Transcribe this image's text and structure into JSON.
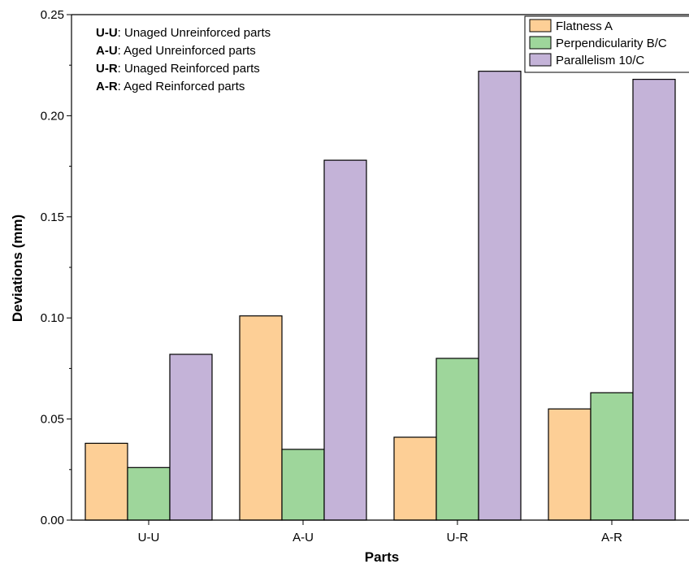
{
  "chart_data": {
    "type": "bar",
    "xlabel": "Parts",
    "ylabel": "Deviations (mm)",
    "ylim": [
      0,
      0.25
    ],
    "yticks": [
      "0.00",
      "0.05",
      "0.10",
      "0.15",
      "0.20",
      "0.25"
    ],
    "categories": [
      "U-U",
      "A-U",
      "U-R",
      "A-R"
    ],
    "series": [
      {
        "name": "Flatness A",
        "color": "#FDCF96",
        "values": [
          0.038,
          0.101,
          0.041,
          0.055
        ]
      },
      {
        "name": "Perpendicularity B/C",
        "color": "#9ED69B",
        "values": [
          0.026,
          0.035,
          0.08,
          0.063
        ]
      },
      {
        "name": "Parallelism 10/C",
        "color": "#C4B3D8",
        "values": [
          0.082,
          0.178,
          0.222,
          0.218
        ]
      }
    ],
    "legend_position": "top-right",
    "grid": false,
    "annotations": [
      {
        "key": "U-U",
        "text": ": Unaged Unreinforced parts"
      },
      {
        "key": "A-U",
        "text": ": Aged Unreinforced parts"
      },
      {
        "key": "U-R",
        "text": ": Unaged Reinforced parts"
      },
      {
        "key": "A-R",
        "text": ": Aged Reinforced parts"
      }
    ]
  }
}
